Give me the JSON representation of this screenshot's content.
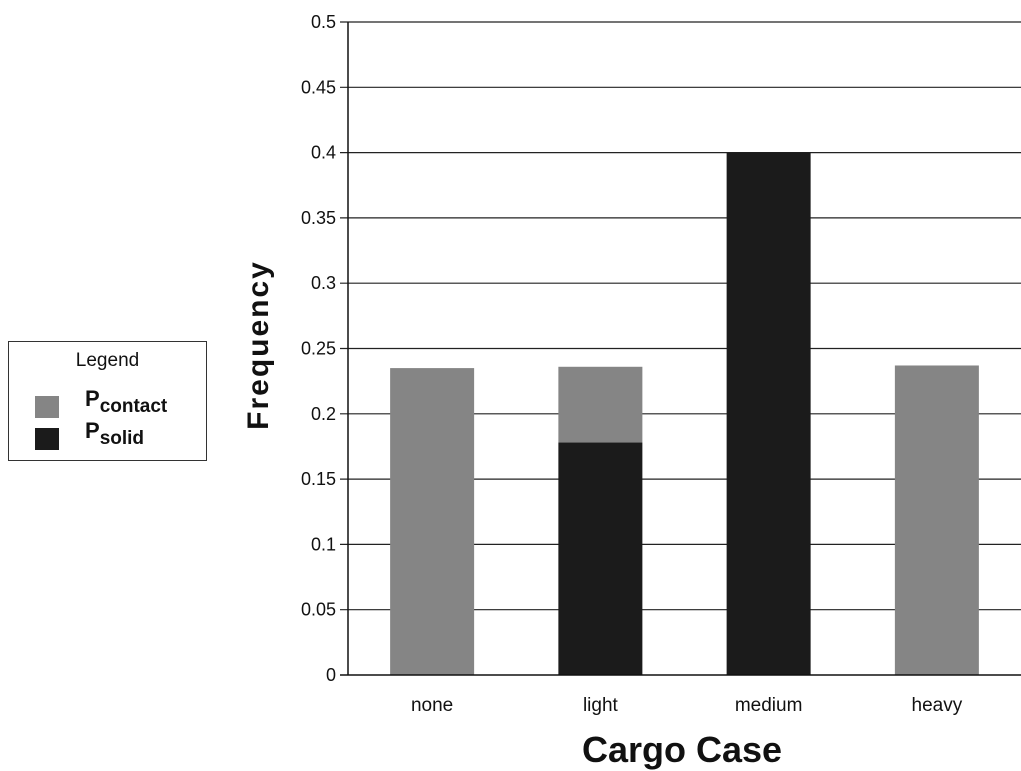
{
  "colors": {
    "contact": "#858585",
    "solid": "#1b1b1b",
    "gridline": "#222222",
    "axis": "#111111"
  },
  "legend": {
    "title": "Legend",
    "items": [
      {
        "symbol": "P",
        "subscript": "contact",
        "color_key": "contact"
      },
      {
        "symbol": "P",
        "subscript": "solid",
        "color_key": "solid"
      }
    ]
  },
  "chart_data": {
    "type": "bar",
    "stacked": true,
    "categories": [
      "none",
      "light",
      "medium",
      "heavy"
    ],
    "series": [
      {
        "name": "P_solid",
        "values": [
          0,
          0.178,
          0.4,
          0
        ]
      },
      {
        "name": "P_contact",
        "values": [
          0.235,
          0.058,
          0,
          0.237
        ]
      }
    ],
    "xlabel": "Cargo Case",
    "ylabel": "Frequency",
    "ylim": [
      0,
      0.5
    ],
    "yticks": [
      "0",
      "0.05",
      "0.1",
      "0.15",
      "0.2",
      "0.25",
      "0.3",
      "0.35",
      "0.4",
      "0.45",
      "0.5"
    ],
    "grid": true,
    "legend_position": "left"
  }
}
